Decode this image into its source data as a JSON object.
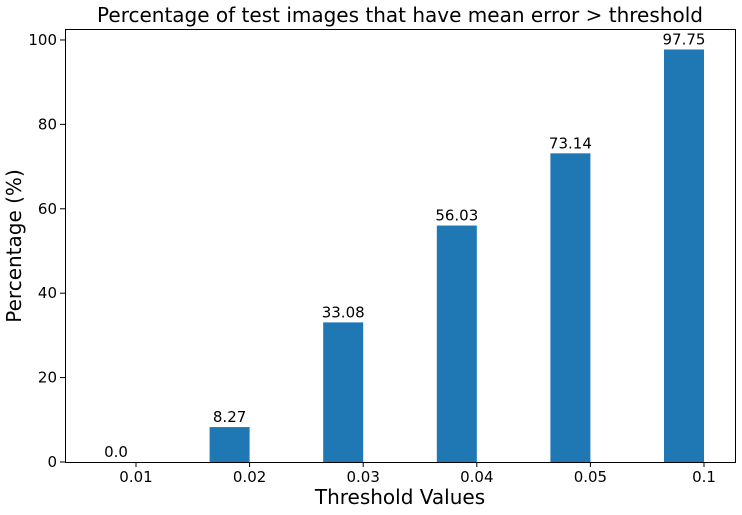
{
  "chart_data": {
    "type": "bar",
    "title": "Percentage of test images that have mean error > threshold",
    "xlabel": "Threshold Values",
    "ylabel": "Percentage (%)",
    "categories": [
      "0.01",
      "0.02",
      "0.03",
      "0.04",
      "0.05",
      "0.1"
    ],
    "values": [
      0.0,
      8.27,
      33.08,
      56.03,
      73.14,
      97.75
    ],
    "data_labels": [
      "0.0",
      "8.27",
      "33.08",
      "56.03",
      "73.14",
      "97.75"
    ],
    "ylim": [
      0,
      102.6
    ],
    "yticks": [
      0,
      20,
      40,
      60,
      80,
      100
    ],
    "ytick_labels": [
      "0",
      "20",
      "40",
      "60",
      "80",
      "100"
    ],
    "bar_color": "#1f77b4",
    "bar_alignment": "left-of-tick",
    "grid": false,
    "legend": "none"
  }
}
